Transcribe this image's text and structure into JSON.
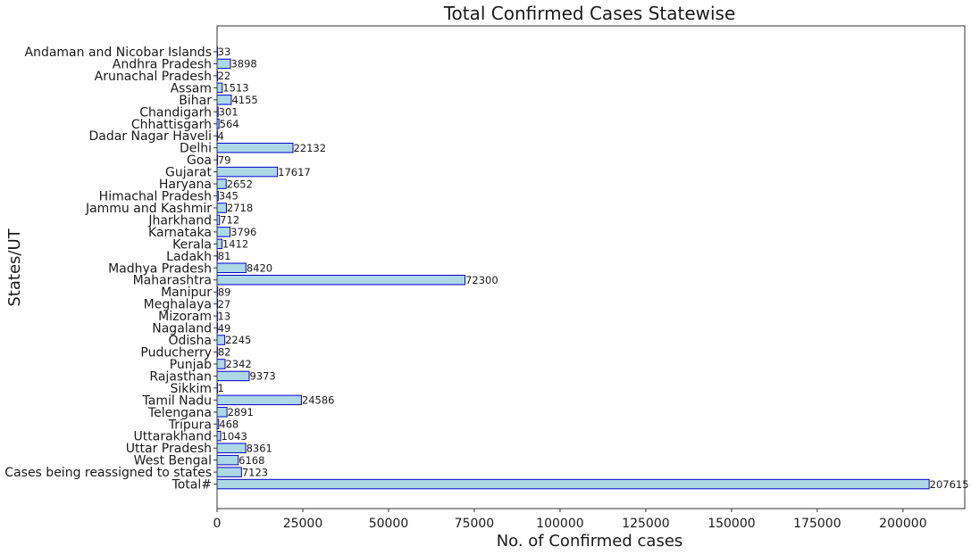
{
  "chart_data": {
    "type": "bar",
    "orientation": "horizontal",
    "title": "Total Confirmed Cases Statewise",
    "xlabel": "No. of Confirmed cases",
    "ylabel": "States/UT",
    "xlim": [
      0,
      218000
    ],
    "xticks": [
      0,
      25000,
      50000,
      75000,
      100000,
      125000,
      150000,
      175000,
      200000
    ],
    "grid": false,
    "categories": [
      "Andaman and Nicobar Islands",
      "Andhra Pradesh",
      "Arunachal Pradesh",
      "Assam",
      "Bihar",
      "Chandigarh",
      "Chhattisgarh",
      "Dadar Nagar Haveli",
      "Delhi",
      "Goa",
      "Gujarat",
      "Haryana",
      "Himachal Pradesh",
      "Jammu and Kashmir",
      "Jharkhand",
      "Karnataka",
      "Kerala",
      "Ladakh",
      "Madhya Pradesh",
      "Maharashtra",
      "Manipur",
      "Meghalaya",
      "Mizoram",
      "Nagaland",
      "Odisha",
      "Puducherry",
      "Punjab",
      "Rajasthan",
      "Sikkim",
      "Tamil Nadu",
      "Telengana",
      "Tripura",
      "Uttarakhand",
      "Uttar Pradesh",
      "West Bengal",
      "Cases being reassigned to states",
      "Total#"
    ],
    "values": [
      33,
      3898,
      22,
      1513,
      4155,
      301,
      564,
      4,
      22132,
      79,
      17617,
      2652,
      345,
      2718,
      712,
      3796,
      1412,
      81,
      8420,
      72300,
      89,
      27,
      13,
      49,
      2245,
      82,
      2342,
      9373,
      1,
      24586,
      2891,
      468,
      1043,
      8361,
      6168,
      7123,
      207615
    ],
    "colors": {
      "bar_fill": "#add8e6",
      "bar_edge": "#0000cd",
      "axis": "#333333"
    }
  }
}
